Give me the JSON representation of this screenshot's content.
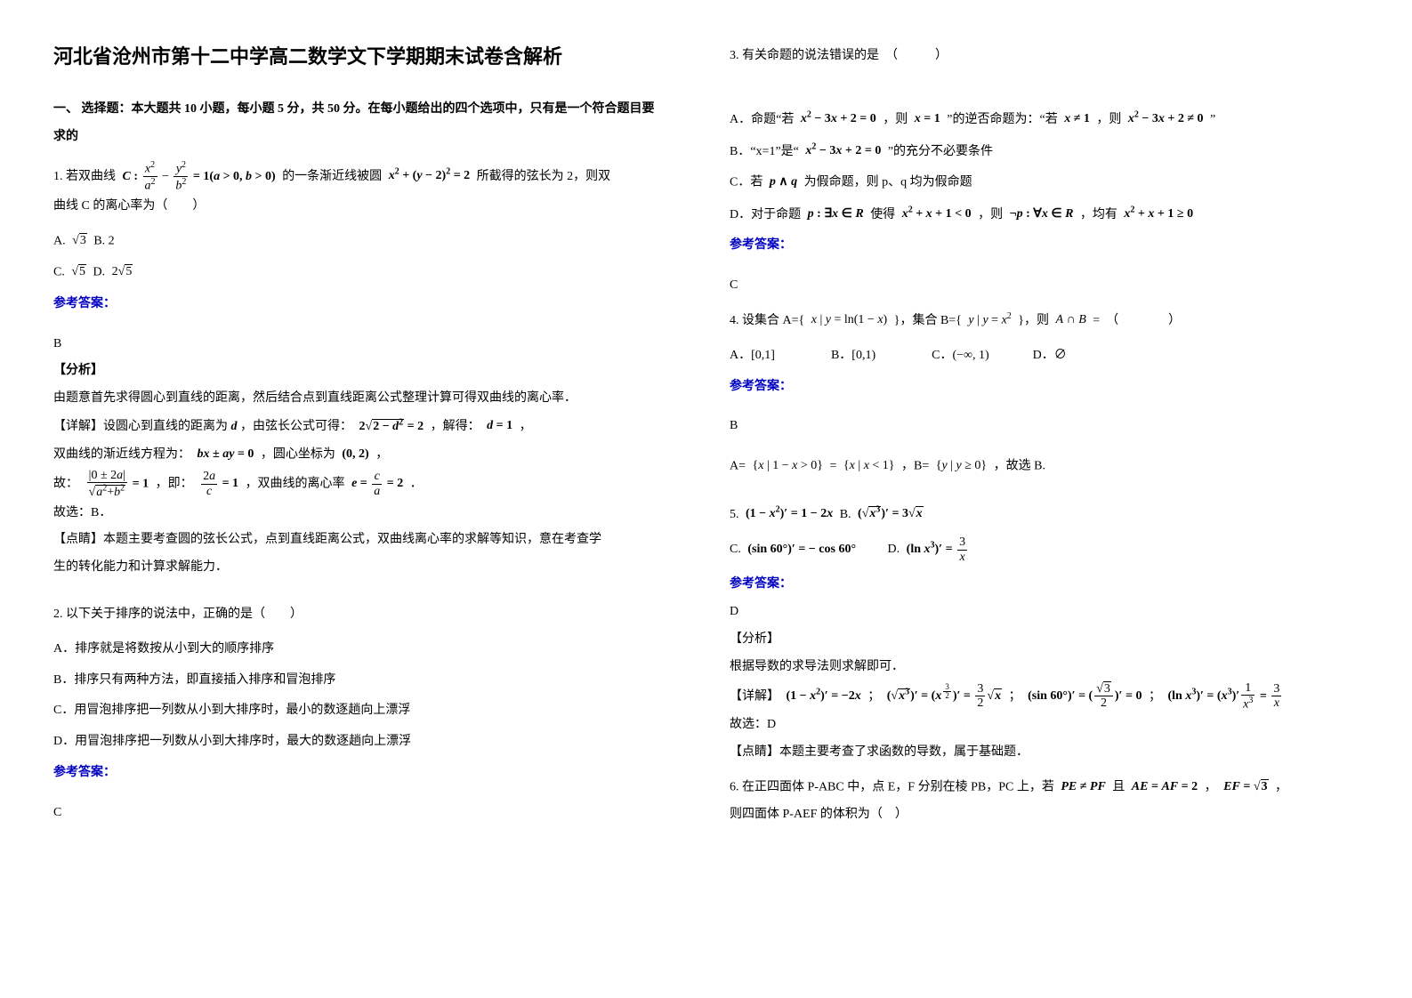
{
  "title": "河北省沧州市第十二中学高二数学文下学期期末试卷含解析",
  "section1": "一、 选择题：本大题共 10 小题，每小题 5 分，共 50 分。在每小题给出的四个选项中，只有是一个符合题目要求的",
  "q1": {
    "stem_prefix": "1. 若双曲线 ",
    "stem_mid": " 的一条渐近线被圆 ",
    "stem_suffix": " 所截得的弦长为 2，则双",
    "line2": "曲线 C 的离心率为（　　）",
    "optA_pre": "A. ",
    "optA_post": "  B. 2",
    "optC_pre": "C. ",
    "optC_post": "  D. ",
    "ans_label": "参考答案：",
    "ans": "B",
    "analy_label": "【分析】",
    "analy1": "由题意首先求得圆心到直线的距离，然后结合点到直线距离公式整理计算可得双曲线的离心率．",
    "det_label": "【详解】设圆心到直线的距离为 ",
    "det_mid": "，由弦长公式可得：",
    "det_suf": "，解得：",
    "det_end": "，",
    "asym": "双曲线的渐近线方程为：",
    "asym_mid": "，圆心坐标为 ",
    "asym_end": "，",
    "so_pre": "故：",
    "so_mid": "，即：",
    "so_mid2": "，双曲线的离心率 ",
    "so_end": "．",
    "pick": "故选：B．",
    "pt_label": "【点睛】本题主要考查圆的弦长公式，点到直线距离公式，双曲线离心率的求解等知识，意在考查学",
    "pt2": "生的转化能力和计算求解能力．"
  },
  "q2": {
    "stem": "2. 以下关于排序的说法中，正确的是（　　）",
    "a": "A．排序就是将数按从小到大的顺序排序",
    "b": "B．排序只有两种方法，即直接插入排序和冒泡排序",
    "c": "C．用冒泡排序把一列数从小到大排序时，最小的数逐趟向上漂浮",
    "d": "D．用冒泡排序把一列数从小到大排序时，最大的数逐趟向上漂浮",
    "ans_label": "参考答案：",
    "ans": "C"
  },
  "q3": {
    "stem": "3. 有关命题的说法错误的是　（　　　）",
    "a_pre": "A．命题“若 ",
    "a_mid1": "，则 ",
    "a_mid2": "”的逆否命题为：“若 ",
    "a_mid3": "，则 ",
    "a_end": "”",
    "b_pre": "B．“x=1”是“",
    "b_end": "”的充分不必要条件",
    "c_pre": "C．若 ",
    "c_end": " 为假命题，则 p、q 均为假命题",
    "d_pre": "D．对于命题 ",
    "d_mid1": " 使得 ",
    "d_mid2": "，则 ",
    "d_mid3": "，均有 ",
    "ans_label": "参考答案：",
    "ans": "C"
  },
  "q4": {
    "stem_pre": "4. 设集合 A={ ",
    "stem_mid": " }，集合 B={ ",
    "stem_end": " }，则 ",
    "stem_eq": " =　（　　　　）",
    "a": "A．",
    "av": "[0,1]",
    "b": "B．",
    "bv": "[0,1)",
    "c": "C．",
    "cv": "(−∞, 1)",
    "d": "D．",
    "dv": "∅",
    "ans_label": "参考答案：",
    "ans": "B",
    "lineA_pre": "A=",
    "lineA_mid": "=",
    "lineA_sep": "，B=",
    "lineA_end": "，故选 B."
  },
  "q5": {
    "n5a": "5. ",
    "n5b": "  B. ",
    "n5c": "C. ",
    "n5d": "　　D. ",
    "ans_label": "参考答案：",
    "ans": "D",
    "analy_label": "【分析】",
    "analy": "根据导数的求导法则求解即可．",
    "det_label": "【详解】",
    "det_sep1": "；",
    "det_sep2": "；",
    "det_sep3": "；",
    "pick": "故选：D",
    "pt": "【点睛】本题主要考查了求函数的导数，属于基础题．"
  },
  "q6": {
    "stem_pre": "6. 在正四面体 P-ABC 中，点 E，F 分别在棱 PB，PC 上，若 ",
    "stem_mid1": " 且 ",
    "stem_mid2": "，",
    "stem_end": "，",
    "line2": "则四面体 P-AEF 的体积为（　）"
  }
}
